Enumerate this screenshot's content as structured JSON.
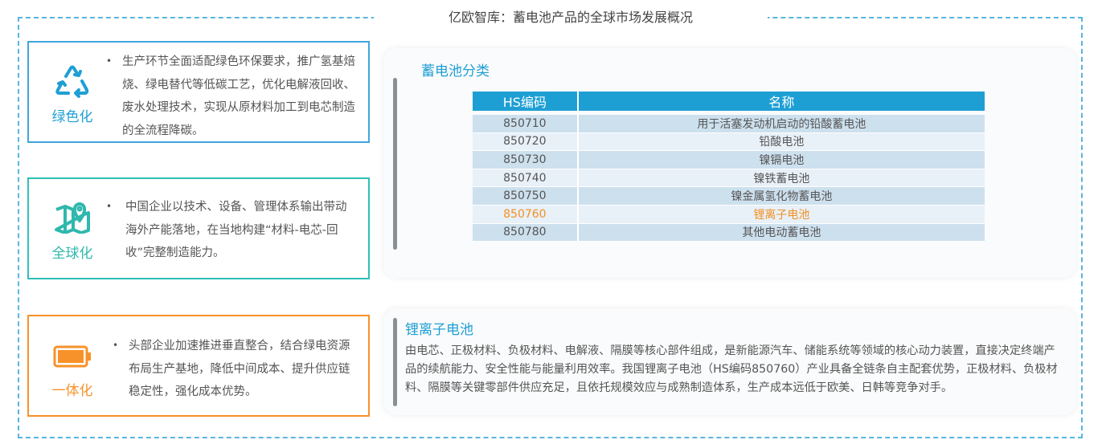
{
  "title": "亿欧智库：蓄电池产品的全球市场发展概况",
  "colors": {
    "blue": "#3fa6dc",
    "teal": "#2fc0b5",
    "orange": "#f7922a",
    "accent": "#1e9fd4",
    "highlight": "#f39021"
  },
  "cards": [
    {
      "label": "绿色化",
      "icon": "recycle-icon",
      "bullet": "•",
      "text": "生产环节全面适配绿色环保要求，推广氢基焙烧、绿电替代等低碳工艺，优化电解液回收、废水处理技术，实现从原材料加工到电芯制造的全流程降碳。"
    },
    {
      "label": "全球化",
      "icon": "map-pin-icon",
      "bullet": "•",
      "text": "中国企业以技术、设备、管理体系输出带动海外产能落地，在当地构建“材料-电芯-回收”完整制造能力。"
    },
    {
      "label": "一体化",
      "icon": "battery-icon",
      "bullet": "•",
      "text": "头部企业加速推进垂直整合，结合绿电资源布局生产基地，降低中间成本、提升供应链稳定性，强化成本优势。"
    }
  ],
  "classification": {
    "title": "蓄电池分类",
    "headers": [
      "HS编码",
      "名称"
    ],
    "rows": [
      {
        "code": "850710",
        "name": "用于活塞发动机启动的铅酸蓄电池"
      },
      {
        "code": "850720",
        "name": "铅酸电池"
      },
      {
        "code": "850730",
        "name": "镍镉电池"
      },
      {
        "code": "850740",
        "name": "镍铁蓄电池"
      },
      {
        "code": "850750",
        "name": "镍金属氢化物蓄电池"
      },
      {
        "code": "850760",
        "name": "锂离子电池",
        "highlighted": true
      },
      {
        "code": "850780",
        "name": "其他电动蓄电池"
      }
    ]
  },
  "lithium": {
    "title": "锂离子电池",
    "text": "由电芯、正极材料、负极材料、电解液、隔膜等核心部件组成，是新能源汽车、储能系统等领域的核心动力装置，直接决定终端产品的续航能力、安全性能与能量利用效率。我国锂离子电池（HS编码850760）产业具备全链条自主配套优势，正极材料、负极材料、隔膜等关键零部件供应充足，且依托规模效应与成熟制造体系，生产成本远低于欧美、日韩等竞争对手。"
  }
}
